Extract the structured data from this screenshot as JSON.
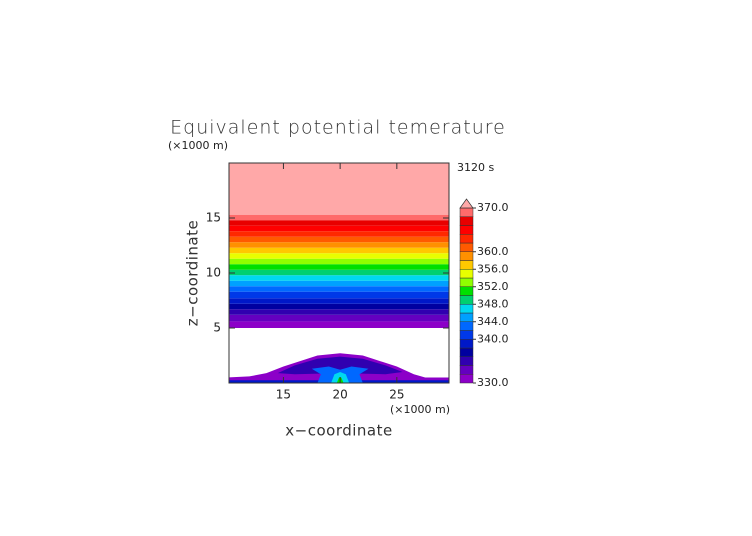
{
  "chart_data": {
    "type": "contour",
    "title": "Equivalent potential temerature",
    "time_label": "3120 s",
    "x_label": "x−coordinate",
    "y_label": "z−coordinate",
    "x_unit": "(×1000 m)",
    "y_unit": "(×1000 m)",
    "xlim": [
      10.2,
      29.6
    ],
    "ylim": [
      0,
      20
    ],
    "xticks": [
      15,
      20,
      25
    ],
    "yticks": [
      5,
      10,
      15
    ],
    "levels": [
      330,
      332,
      334,
      336,
      338,
      340,
      342,
      344,
      346,
      348,
      350,
      352,
      354,
      356,
      358,
      360,
      362,
      364,
      366,
      368,
      370
    ],
    "colors": [
      "#8c00c8",
      "#6400c0",
      "#3000b0",
      "#0000a0",
      "#0018c8",
      "#0038e8",
      "#0068ff",
      "#00a0ff",
      "#00d8f0",
      "#00d070",
      "#00e000",
      "#90ff00",
      "#e8ff00",
      "#ffc800",
      "#ff9000",
      "#ff5a00",
      "#ff2800",
      "#ff0000",
      "#e80000",
      "#ff6a6a",
      "#ffa8a8"
    ],
    "layer_edges": [
      5.0,
      5.6,
      6.2,
      6.7,
      7.2,
      7.7,
      8.3,
      8.8,
      9.3,
      9.8,
      10.3,
      10.8,
      11.3,
      11.8,
      12.3,
      12.8,
      13.3,
      13.8,
      14.3,
      14.8,
      15.3
    ],
    "colorbar_ticks": [
      {
        "value": 330,
        "label": "330.0"
      },
      {
        "value": 340,
        "label": "340.0"
      },
      {
        "value": 344,
        "label": "344.0"
      },
      {
        "value": 348,
        "label": "348.0"
      },
      {
        "value": 352,
        "label": "352.0"
      },
      {
        "value": 356,
        "label": "356.0"
      },
      {
        "value": 360,
        "label": "360.0"
      },
      {
        "value": 370,
        "label": "370.0"
      }
    ],
    "blobs": [
      {
        "level": 330,
        "points": [
          [
            10,
            0
          ],
          [
            30,
            0
          ],
          [
            30,
            0.5
          ],
          [
            27.5,
            0.5
          ],
          [
            26.5,
            0.8
          ],
          [
            25,
            1.5
          ],
          [
            22,
            2.5
          ],
          [
            20,
            2.7
          ],
          [
            18,
            2.5
          ],
          [
            15,
            1.5
          ],
          [
            13.5,
            0.9
          ],
          [
            12,
            0.6
          ],
          [
            10,
            0.5
          ]
        ]
      },
      {
        "level": 334,
        "points": [
          [
            14.5,
            0.9
          ],
          [
            16,
            1.6
          ],
          [
            18,
            2.2
          ],
          [
            20,
            2.4
          ],
          [
            22,
            2.2
          ],
          [
            24,
            1.6
          ],
          [
            25.5,
            1.0
          ],
          [
            24,
            0.8
          ],
          [
            20,
            0.9
          ],
          [
            16,
            0.8
          ]
        ]
      },
      {
        "level": 338,
        "points": [
          [
            10,
            0
          ],
          [
            30,
            0
          ],
          [
            30,
            0.25
          ],
          [
            10,
            0.25
          ]
        ]
      },
      {
        "level": 342,
        "points": [
          [
            18,
            0
          ],
          [
            18.3,
            0.8
          ],
          [
            17.5,
            1.3
          ],
          [
            19,
            1.5
          ],
          [
            20,
            1.2
          ],
          [
            21,
            1.5
          ],
          [
            22.5,
            1.3
          ],
          [
            21.7,
            0.8
          ],
          [
            22,
            0
          ]
        ]
      },
      {
        "level": 346,
        "points": [
          [
            19.2,
            0
          ],
          [
            19.5,
            0.8
          ],
          [
            20,
            1.0
          ],
          [
            20.5,
            0.8
          ],
          [
            20.8,
            0
          ]
        ]
      },
      {
        "level": 350,
        "points": [
          [
            19.7,
            0
          ],
          [
            19.9,
            0.5
          ],
          [
            20.1,
            0.5
          ],
          [
            20.3,
            0
          ]
        ]
      }
    ]
  }
}
